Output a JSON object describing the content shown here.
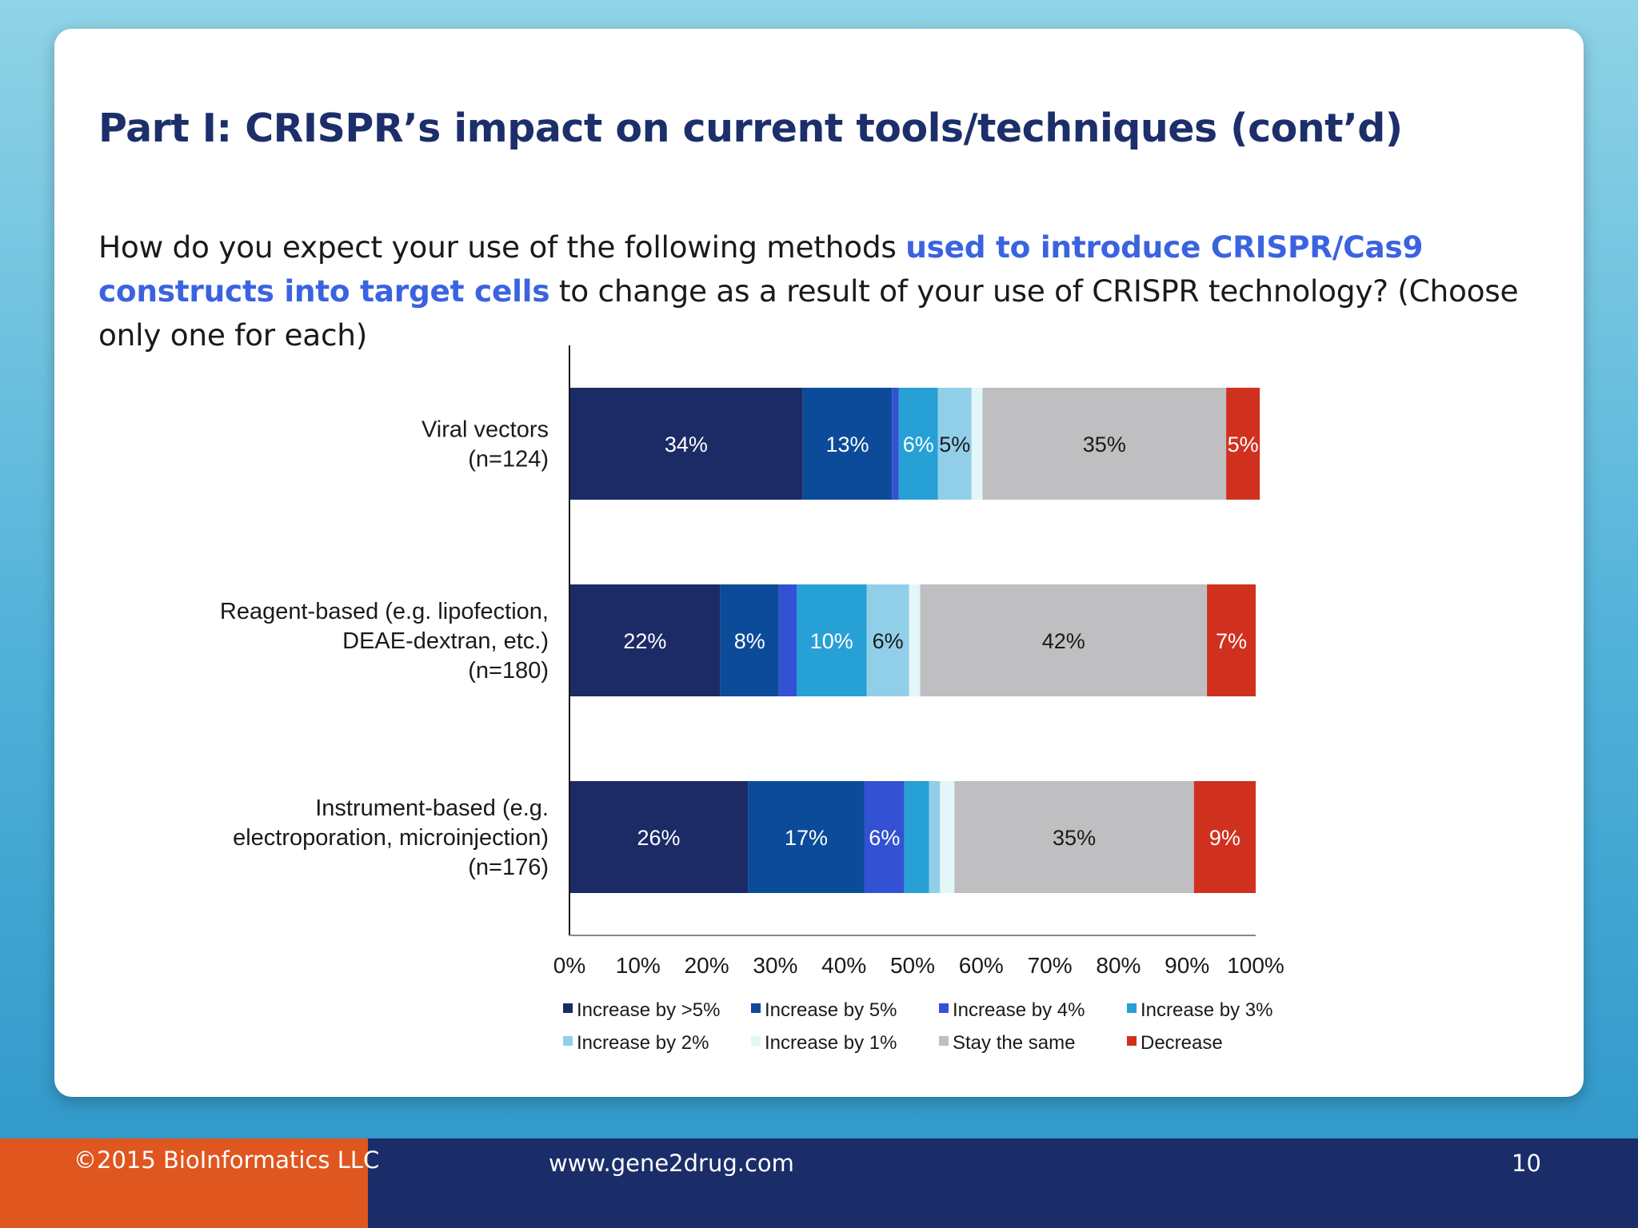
{
  "slide": {
    "title": "Part I: CRISPR’s impact on current tools/techniques (cont’d)",
    "question": {
      "part1": "How do you expect your use of the following methods ",
      "highlight": "used to introduce CRISPR/Cas9 constructs into target cells",
      "part2": " to change as a result of your use of CRISPR technology? (Choose only one for each)"
    }
  },
  "footer": {
    "copyright": "©2015 BioInformatics LLC",
    "website": "www.gene2drug.com",
    "page_number": "10"
  },
  "chart_data": {
    "type": "bar",
    "orientation": "horizontal",
    "stacked": true,
    "categories": [
      [
        "Viral vectors",
        "(n=124)"
      ],
      [
        "Reagent-based (e.g. lipofection,",
        "DEAE-dextran, etc.)",
        "(n=180)"
      ],
      [
        "Instrument-based (e.g.",
        "electroporation, microinjection)",
        "(n=176)"
      ]
    ],
    "series": [
      {
        "name": "Increase by >5%",
        "color": "#1c2b66",
        "values": [
          34,
          22,
          26
        ],
        "labels": [
          "34%",
          "22%",
          "26%"
        ]
      },
      {
        "name": "Increase by 5%",
        "color": "#0b4b9a",
        "values": [
          13,
          8.5,
          17
        ],
        "labels": [
          "13%",
          "8%",
          "17%"
        ]
      },
      {
        "name": "Increase by 4%",
        "color": "#3352d3",
        "values": [
          1,
          2.6,
          5.8
        ],
        "labels": [
          "",
          "",
          "6%"
        ]
      },
      {
        "name": "Increase by 3%",
        "color": "#27a0d6",
        "values": [
          5.7,
          10.2,
          3.6
        ],
        "labels": [
          "6%",
          "10%",
          ""
        ]
      },
      {
        "name": "Increase by 2%",
        "color": "#91cfe9",
        "values": [
          4.9,
          6.2,
          1.6
        ],
        "labels": [
          "5%",
          "6%",
          ""
        ]
      },
      {
        "name": "Increase by 1%",
        "color": "#e3f6f8",
        "values": [
          1.6,
          1.6,
          2.1
        ],
        "labels": [
          "",
          "",
          ""
        ]
      },
      {
        "name": "Stay the same",
        "color": "#bfbfc2",
        "values": [
          35.5,
          41.8,
          34.9
        ],
        "labels": [
          "35%",
          "42%",
          "35%"
        ]
      },
      {
        "name": "Decrease",
        "color": "#d0311f",
        "values": [
          4.9,
          7.1,
          9
        ],
        "labels": [
          "5%",
          "7%",
          "9%"
        ]
      }
    ],
    "xlim": [
      0,
      100
    ],
    "xticks": [
      "0%",
      "10%",
      "20%",
      "30%",
      "40%",
      "50%",
      "60%",
      "70%",
      "80%",
      "90%",
      "100%"
    ],
    "grid": false,
    "legend_position": "bottom"
  }
}
